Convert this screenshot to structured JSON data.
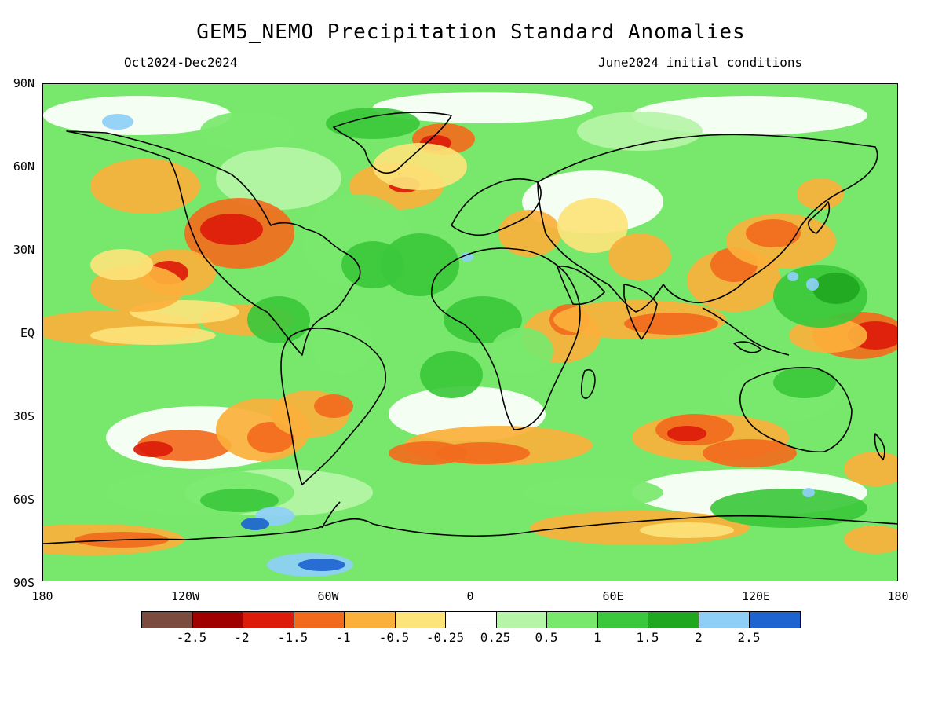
{
  "header": {
    "title": "GEM5_NEMO Precipitation Standard Anomalies",
    "period": "Oct2024-Dec2024",
    "init": "June2024 initial conditions"
  },
  "axes": {
    "lat_labels": [
      "90N",
      "60N",
      "30N",
      "EQ",
      "30S",
      "60S",
      "90S"
    ],
    "lon_labels": [
      "180",
      "120W",
      "60W",
      "0",
      "60E",
      "120E",
      "180"
    ]
  },
  "colorbar": {
    "colors": [
      "#7a4b3e",
      "#a00000",
      "#dc1b0a",
      "#f26b1d",
      "#fbb03b",
      "#fce37a",
      "#ffffff",
      "#b6f5a8",
      "#78e86d",
      "#3cc83c",
      "#1fa81f",
      "#8ecff7",
      "#1e64d0"
    ],
    "labels": [
      "-2.5",
      "-2",
      "-1.5",
      "-1",
      "-0.5",
      "-0.25",
      "0.25",
      "0.5",
      "1",
      "1.5",
      "2",
      "2.5"
    ]
  },
  "map": {
    "background_color": "#78e86d",
    "coastline_color": "#000000"
  }
}
